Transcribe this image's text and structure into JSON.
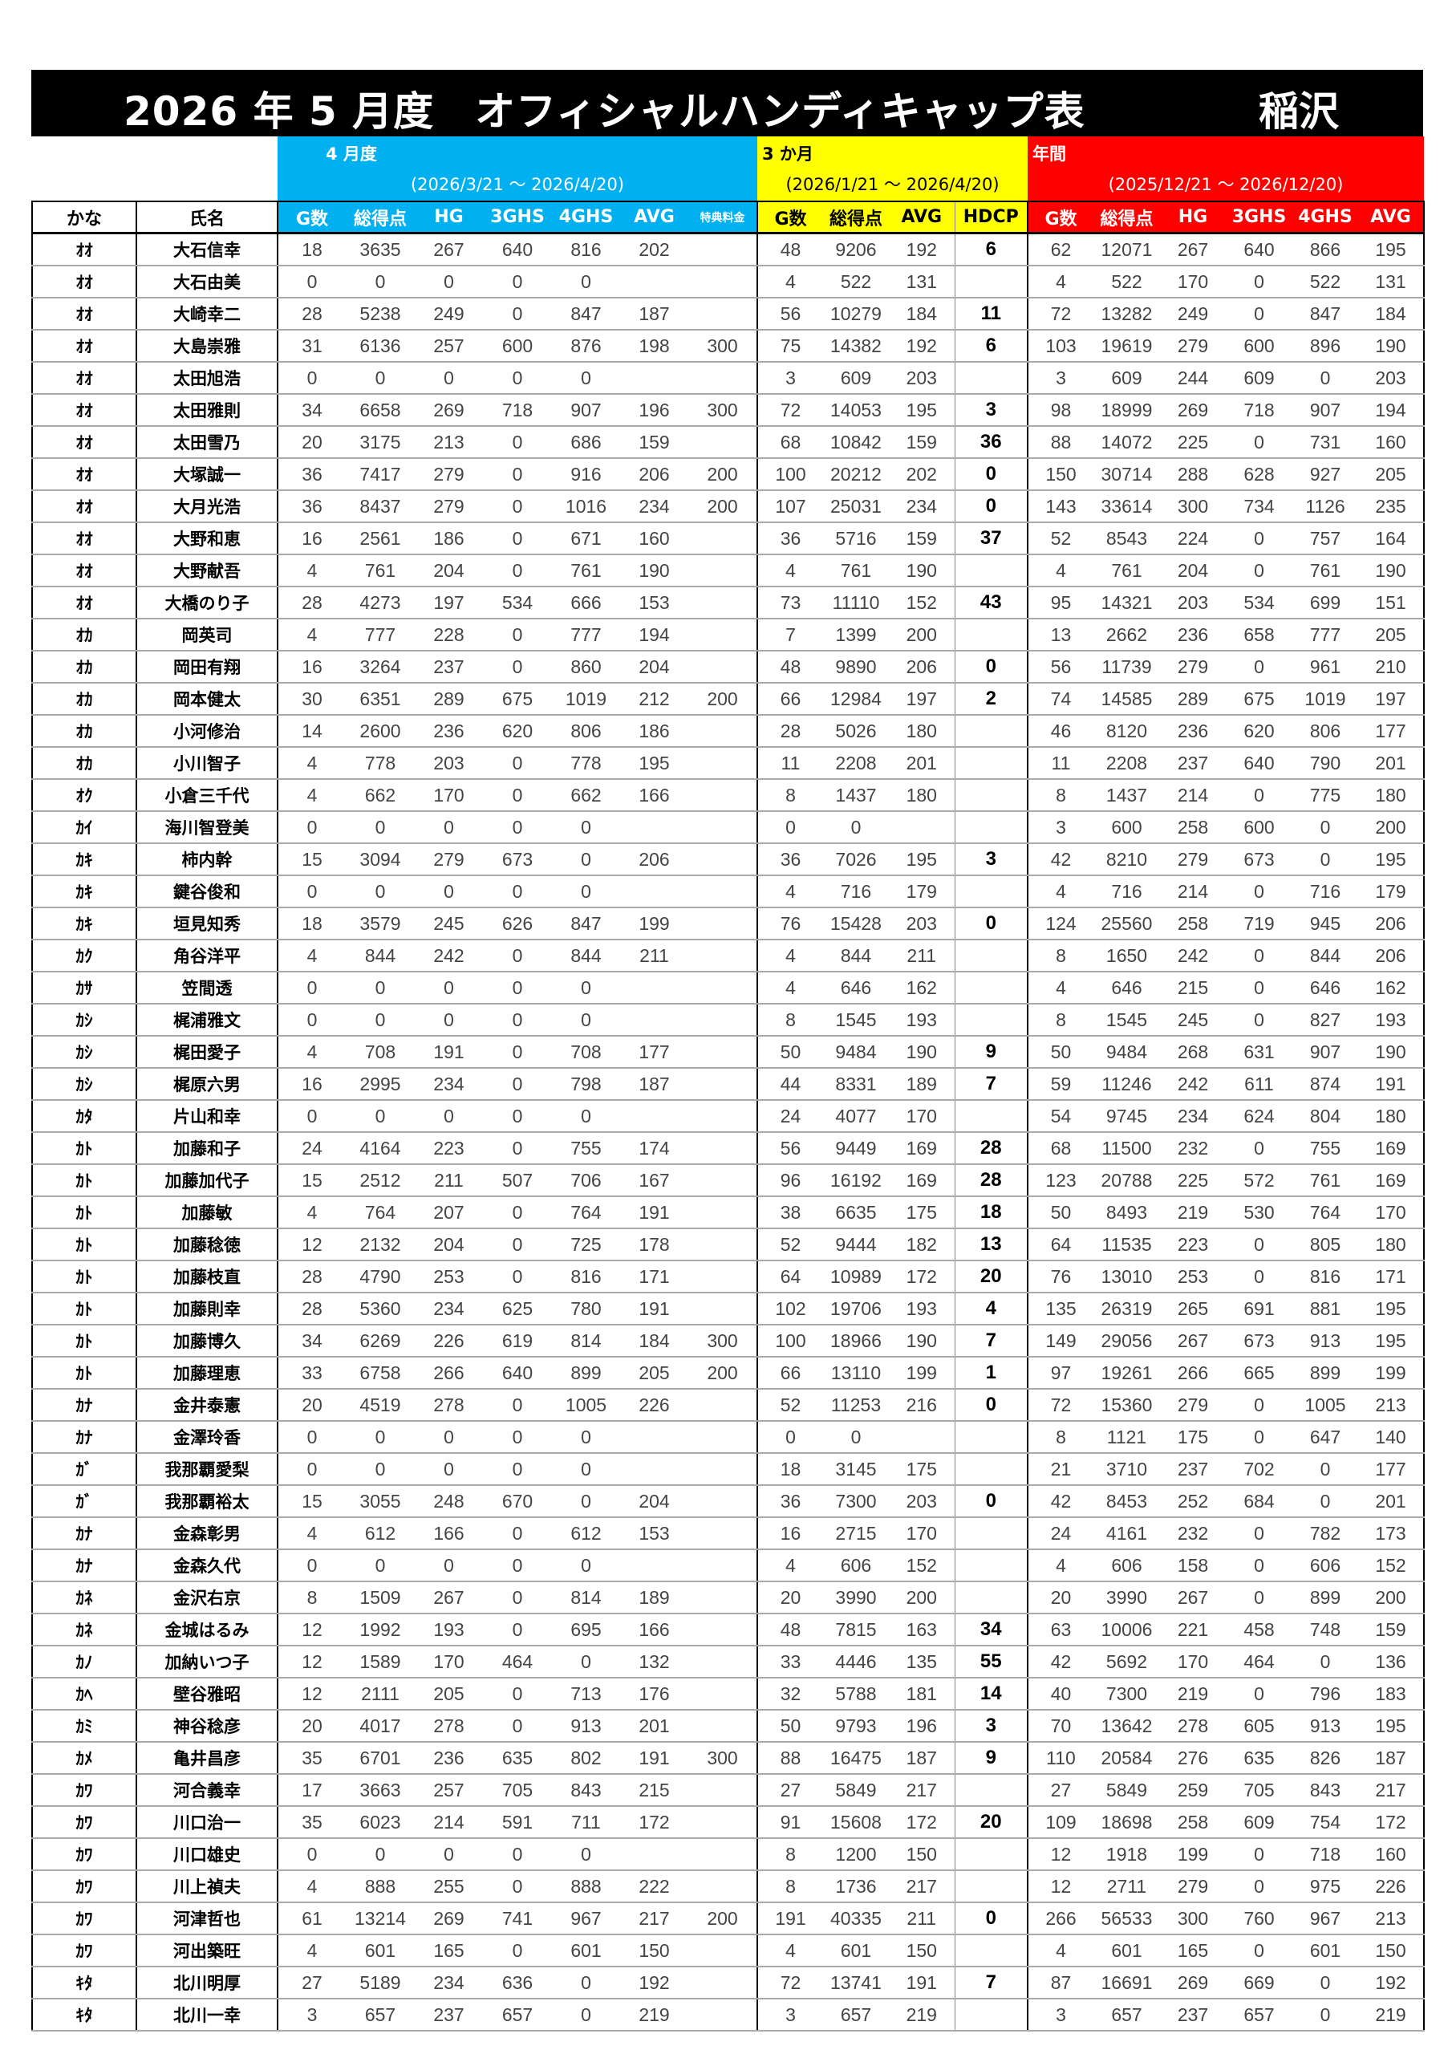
{
  "title": {
    "main": "2026 年 5 月度　オフィシャルハンディキャップ表",
    "place": "稲沢"
  },
  "groups": {
    "month": {
      "label": "4 月度",
      "period": "(2026/3/21 ～ 2026/4/20)",
      "color": "#00b0f0"
    },
    "three_months": {
      "label": "3 か月",
      "period": "(2026/1/21 ～ 2026/4/20)",
      "color": "#ffff00"
    },
    "annual": {
      "label": "年間",
      "period": "(2025/12/21 ～ 2026/12/20)",
      "color": "#ff0000"
    }
  },
  "columns": [
    "かな",
    "氏名",
    "G数",
    "総得点",
    "HG",
    "3GHS",
    "4GHS",
    "AVG",
    "特典料金",
    "G数",
    "総得点",
    "AVG",
    "HDCP",
    "G数",
    "総得点",
    "HG",
    "3GHS",
    "4GHS",
    "AVG"
  ],
  "rows": [
    [
      "ｵｵ",
      "大石信幸",
      "18",
      "3635",
      "267",
      "640",
      "816",
      "202",
      "",
      "48",
      "9206",
      "192",
      "6",
      "62",
      "12071",
      "267",
      "640",
      "866",
      "195"
    ],
    [
      "ｵｵ",
      "大石由美",
      "0",
      "0",
      "0",
      "0",
      "0",
      "",
      "",
      "4",
      "522",
      "131",
      "",
      "4",
      "522",
      "170",
      "0",
      "522",
      "131"
    ],
    [
      "ｵｵ",
      "大崎幸二",
      "28",
      "5238",
      "249",
      "0",
      "847",
      "187",
      "",
      "56",
      "10279",
      "184",
      "11",
      "72",
      "13282",
      "249",
      "0",
      "847",
      "184"
    ],
    [
      "ｵｵ",
      "大島崇雅",
      "31",
      "6136",
      "257",
      "600",
      "876",
      "198",
      "300",
      "75",
      "14382",
      "192",
      "6",
      "103",
      "19619",
      "279",
      "600",
      "896",
      "190"
    ],
    [
      "ｵｵ",
      "太田旭浩",
      "0",
      "0",
      "0",
      "0",
      "0",
      "",
      "",
      "3",
      "609",
      "203",
      "",
      "3",
      "609",
      "244",
      "609",
      "0",
      "203"
    ],
    [
      "ｵｵ",
      "太田雅則",
      "34",
      "6658",
      "269",
      "718",
      "907",
      "196",
      "300",
      "72",
      "14053",
      "195",
      "3",
      "98",
      "18999",
      "269",
      "718",
      "907",
      "194"
    ],
    [
      "ｵｵ",
      "太田雪乃",
      "20",
      "3175",
      "213",
      "0",
      "686",
      "159",
      "",
      "68",
      "10842",
      "159",
      "36",
      "88",
      "14072",
      "225",
      "0",
      "731",
      "160"
    ],
    [
      "ｵｵ",
      "大塚誠一",
      "36",
      "7417",
      "279",
      "0",
      "916",
      "206",
      "200",
      "100",
      "20212",
      "202",
      "0",
      "150",
      "30714",
      "288",
      "628",
      "927",
      "205"
    ],
    [
      "ｵｵ",
      "大月光浩",
      "36",
      "8437",
      "279",
      "0",
      "1016",
      "234",
      "200",
      "107",
      "25031",
      "234",
      "0",
      "143",
      "33614",
      "300",
      "734",
      "1126",
      "235"
    ],
    [
      "ｵｵ",
      "大野和恵",
      "16",
      "2561",
      "186",
      "0",
      "671",
      "160",
      "",
      "36",
      "5716",
      "159",
      "37",
      "52",
      "8543",
      "224",
      "0",
      "757",
      "164"
    ],
    [
      "ｵｵ",
      "大野献吾",
      "4",
      "761",
      "204",
      "0",
      "761",
      "190",
      "",
      "4",
      "761",
      "190",
      "",
      "4",
      "761",
      "204",
      "0",
      "761",
      "190"
    ],
    [
      "ｵｵ",
      "大橋のり子",
      "28",
      "4273",
      "197",
      "534",
      "666",
      "153",
      "",
      "73",
      "11110",
      "152",
      "43",
      "95",
      "14321",
      "203",
      "534",
      "699",
      "151"
    ],
    [
      "ｵｶ",
      "岡英司",
      "4",
      "777",
      "228",
      "0",
      "777",
      "194",
      "",
      "7",
      "1399",
      "200",
      "",
      "13",
      "2662",
      "236",
      "658",
      "777",
      "205"
    ],
    [
      "ｵｶ",
      "岡田有翔",
      "16",
      "3264",
      "237",
      "0",
      "860",
      "204",
      "",
      "48",
      "9890",
      "206",
      "0",
      "56",
      "11739",
      "279",
      "0",
      "961",
      "210"
    ],
    [
      "ｵｶ",
      "岡本健太",
      "30",
      "6351",
      "289",
      "675",
      "1019",
      "212",
      "200",
      "66",
      "12984",
      "197",
      "2",
      "74",
      "14585",
      "289",
      "675",
      "1019",
      "197"
    ],
    [
      "ｵｶ",
      "小河修治",
      "14",
      "2600",
      "236",
      "620",
      "806",
      "186",
      "",
      "28",
      "5026",
      "180",
      "",
      "46",
      "8120",
      "236",
      "620",
      "806",
      "177"
    ],
    [
      "ｵｶ",
      "小川智子",
      "4",
      "778",
      "203",
      "0",
      "778",
      "195",
      "",
      "11",
      "2208",
      "201",
      "",
      "11",
      "2208",
      "237",
      "640",
      "790",
      "201"
    ],
    [
      "ｵｸ",
      "小倉三千代",
      "4",
      "662",
      "170",
      "0",
      "662",
      "166",
      "",
      "8",
      "1437",
      "180",
      "",
      "8",
      "1437",
      "214",
      "0",
      "775",
      "180"
    ],
    [
      "ｶｲ",
      "海川智登美",
      "0",
      "0",
      "0",
      "0",
      "0",
      "",
      "",
      "0",
      "0",
      "",
      "",
      "3",
      "600",
      "258",
      "600",
      "0",
      "200"
    ],
    [
      "ｶｷ",
      "柿内幹",
      "15",
      "3094",
      "279",
      "673",
      "0",
      "206",
      "",
      "36",
      "7026",
      "195",
      "3",
      "42",
      "8210",
      "279",
      "673",
      "0",
      "195"
    ],
    [
      "ｶｷ",
      "鍵谷俊和",
      "0",
      "0",
      "0",
      "0",
      "0",
      "",
      "",
      "4",
      "716",
      "179",
      "",
      "4",
      "716",
      "214",
      "0",
      "716",
      "179"
    ],
    [
      "ｶｷ",
      "垣見知秀",
      "18",
      "3579",
      "245",
      "626",
      "847",
      "199",
      "",
      "76",
      "15428",
      "203",
      "0",
      "124",
      "25560",
      "258",
      "719",
      "945",
      "206"
    ],
    [
      "ｶｸ",
      "角谷洋平",
      "4",
      "844",
      "242",
      "0",
      "844",
      "211",
      "",
      "4",
      "844",
      "211",
      "",
      "8",
      "1650",
      "242",
      "0",
      "844",
      "206"
    ],
    [
      "ｶｻ",
      "笠間透",
      "0",
      "0",
      "0",
      "0",
      "0",
      "",
      "",
      "4",
      "646",
      "162",
      "",
      "4",
      "646",
      "215",
      "0",
      "646",
      "162"
    ],
    [
      "ｶｼ",
      "梶浦雅文",
      "0",
      "0",
      "0",
      "0",
      "0",
      "",
      "",
      "8",
      "1545",
      "193",
      "",
      "8",
      "1545",
      "245",
      "0",
      "827",
      "193"
    ],
    [
      "ｶｼ",
      "梶田愛子",
      "4",
      "708",
      "191",
      "0",
      "708",
      "177",
      "",
      "50",
      "9484",
      "190",
      "9",
      "50",
      "9484",
      "268",
      "631",
      "907",
      "190"
    ],
    [
      "ｶｼ",
      "梶原六男",
      "16",
      "2995",
      "234",
      "0",
      "798",
      "187",
      "",
      "44",
      "8331",
      "189",
      "7",
      "59",
      "11246",
      "242",
      "611",
      "874",
      "191"
    ],
    [
      "ｶﾀ",
      "片山和幸",
      "0",
      "0",
      "0",
      "0",
      "0",
      "",
      "",
      "24",
      "4077",
      "170",
      "",
      "54",
      "9745",
      "234",
      "624",
      "804",
      "180"
    ],
    [
      "ｶﾄ",
      "加藤和子",
      "24",
      "4164",
      "223",
      "0",
      "755",
      "174",
      "",
      "56",
      "9449",
      "169",
      "28",
      "68",
      "11500",
      "232",
      "0",
      "755",
      "169"
    ],
    [
      "ｶﾄ",
      "加藤加代子",
      "15",
      "2512",
      "211",
      "507",
      "706",
      "167",
      "",
      "96",
      "16192",
      "169",
      "28",
      "123",
      "20788",
      "225",
      "572",
      "761",
      "169"
    ],
    [
      "ｶﾄ",
      "加藤敏",
      "4",
      "764",
      "207",
      "0",
      "764",
      "191",
      "",
      "38",
      "6635",
      "175",
      "18",
      "50",
      "8493",
      "219",
      "530",
      "764",
      "170"
    ],
    [
      "ｶﾄ",
      "加藤稔徳",
      "12",
      "2132",
      "204",
      "0",
      "725",
      "178",
      "",
      "52",
      "9444",
      "182",
      "13",
      "64",
      "11535",
      "223",
      "0",
      "805",
      "180"
    ],
    [
      "ｶﾄ",
      "加藤枝直",
      "28",
      "4790",
      "253",
      "0",
      "816",
      "171",
      "",
      "64",
      "10989",
      "172",
      "20",
      "76",
      "13010",
      "253",
      "0",
      "816",
      "171"
    ],
    [
      "ｶﾄ",
      "加藤則幸",
      "28",
      "5360",
      "234",
      "625",
      "780",
      "191",
      "",
      "102",
      "19706",
      "193",
      "4",
      "135",
      "26319",
      "265",
      "691",
      "881",
      "195"
    ],
    [
      "ｶﾄ",
      "加藤博久",
      "34",
      "6269",
      "226",
      "619",
      "814",
      "184",
      "300",
      "100",
      "18966",
      "190",
      "7",
      "149",
      "29056",
      "267",
      "673",
      "913",
      "195"
    ],
    [
      "ｶﾄ",
      "加藤理恵",
      "33",
      "6758",
      "266",
      "640",
      "899",
      "205",
      "200",
      "66",
      "13110",
      "199",
      "1",
      "97",
      "19261",
      "266",
      "665",
      "899",
      "199"
    ],
    [
      "ｶﾅ",
      "金井泰憲",
      "20",
      "4519",
      "278",
      "0",
      "1005",
      "226",
      "",
      "52",
      "11253",
      "216",
      "0",
      "72",
      "15360",
      "279",
      "0",
      "1005",
      "213"
    ],
    [
      "ｶﾅ",
      "金澤玲香",
      "0",
      "0",
      "0",
      "0",
      "0",
      "",
      "",
      "0",
      "0",
      "",
      "",
      "8",
      "1121",
      "175",
      "0",
      "647",
      "140"
    ],
    [
      "ｶﾞ",
      "我那覇愛梨",
      "0",
      "0",
      "0",
      "0",
      "0",
      "",
      "",
      "18",
      "3145",
      "175",
      "",
      "21",
      "3710",
      "237",
      "702",
      "0",
      "177"
    ],
    [
      "ｶﾞ",
      "我那覇裕太",
      "15",
      "3055",
      "248",
      "670",
      "0",
      "204",
      "",
      "36",
      "7300",
      "203",
      "0",
      "42",
      "8453",
      "252",
      "684",
      "0",
      "201"
    ],
    [
      "ｶﾅ",
      "金森彰男",
      "4",
      "612",
      "166",
      "0",
      "612",
      "153",
      "",
      "16",
      "2715",
      "170",
      "",
      "24",
      "4161",
      "232",
      "0",
      "782",
      "173"
    ],
    [
      "ｶﾅ",
      "金森久代",
      "0",
      "0",
      "0",
      "0",
      "0",
      "",
      "",
      "4",
      "606",
      "152",
      "",
      "4",
      "606",
      "158",
      "0",
      "606",
      "152"
    ],
    [
      "ｶﾈ",
      "金沢右京",
      "8",
      "1509",
      "267",
      "0",
      "814",
      "189",
      "",
      "20",
      "3990",
      "200",
      "",
      "20",
      "3990",
      "267",
      "0",
      "899",
      "200"
    ],
    [
      "ｶﾈ",
      "金城はるみ",
      "12",
      "1992",
      "193",
      "0",
      "695",
      "166",
      "",
      "48",
      "7815",
      "163",
      "34",
      "63",
      "10006",
      "221",
      "458",
      "748",
      "159"
    ],
    [
      "ｶﾉ",
      "加納いつ子",
      "12",
      "1589",
      "170",
      "464",
      "0",
      "132",
      "",
      "33",
      "4446",
      "135",
      "55",
      "42",
      "5692",
      "170",
      "464",
      "0",
      "136"
    ],
    [
      "ｶﾍ",
      "壁谷雅昭",
      "12",
      "2111",
      "205",
      "0",
      "713",
      "176",
      "",
      "32",
      "5788",
      "181",
      "14",
      "40",
      "7300",
      "219",
      "0",
      "796",
      "183"
    ],
    [
      "ｶﾐ",
      "神谷稔彦",
      "20",
      "4017",
      "278",
      "0",
      "913",
      "201",
      "",
      "50",
      "9793",
      "196",
      "3",
      "70",
      "13642",
      "278",
      "605",
      "913",
      "195"
    ],
    [
      "ｶﾒ",
      "亀井昌彦",
      "35",
      "6701",
      "236",
      "635",
      "802",
      "191",
      "300",
      "88",
      "16475",
      "187",
      "9",
      "110",
      "20584",
      "276",
      "635",
      "826",
      "187"
    ],
    [
      "ｶﾜ",
      "河合義幸",
      "17",
      "3663",
      "257",
      "705",
      "843",
      "215",
      "",
      "27",
      "5849",
      "217",
      "",
      "27",
      "5849",
      "259",
      "705",
      "843",
      "217"
    ],
    [
      "ｶﾜ",
      "川口治一",
      "35",
      "6023",
      "214",
      "591",
      "711",
      "172",
      "",
      "91",
      "15608",
      "172",
      "20",
      "109",
      "18698",
      "258",
      "609",
      "754",
      "172"
    ],
    [
      "ｶﾜ",
      "川口雄史",
      "0",
      "0",
      "0",
      "0",
      "0",
      "",
      "",
      "8",
      "1200",
      "150",
      "",
      "12",
      "1918",
      "199",
      "0",
      "718",
      "160"
    ],
    [
      "ｶﾜ",
      "川上禎夫",
      "4",
      "888",
      "255",
      "0",
      "888",
      "222",
      "",
      "8",
      "1736",
      "217",
      "",
      "12",
      "2711",
      "279",
      "0",
      "975",
      "226"
    ],
    [
      "ｶﾜ",
      "河津哲也",
      "61",
      "13214",
      "269",
      "741",
      "967",
      "217",
      "200",
      "191",
      "40335",
      "211",
      "0",
      "266",
      "56533",
      "300",
      "760",
      "967",
      "213"
    ],
    [
      "ｶﾜ",
      "河出築旺",
      "4",
      "601",
      "165",
      "0",
      "601",
      "150",
      "",
      "4",
      "601",
      "150",
      "",
      "4",
      "601",
      "165",
      "0",
      "601",
      "150"
    ],
    [
      "ｷﾀ",
      "北川明厚",
      "27",
      "5189",
      "234",
      "636",
      "0",
      "192",
      "",
      "72",
      "13741",
      "191",
      "7",
      "87",
      "16691",
      "269",
      "669",
      "0",
      "192"
    ],
    [
      "ｷﾀ",
      "北川一幸",
      "3",
      "657",
      "237",
      "657",
      "0",
      "219",
      "",
      "3",
      "657",
      "219",
      "",
      "3",
      "657",
      "237",
      "657",
      "0",
      "219"
    ]
  ]
}
